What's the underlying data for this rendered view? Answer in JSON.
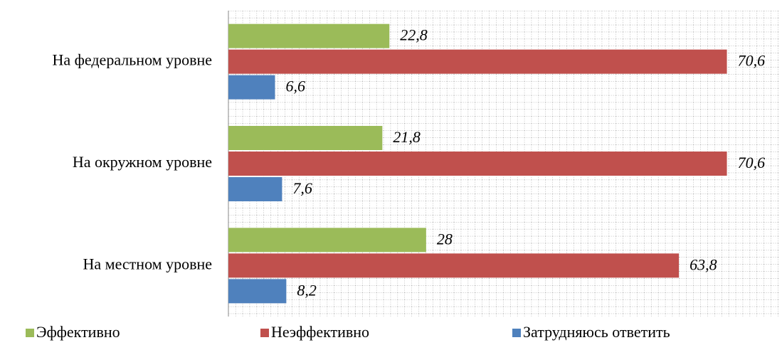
{
  "chart_data": {
    "type": "hbar",
    "categories": [
      "На федеральном уровне",
      "На окружном уровне",
      "На местном уровне"
    ],
    "series": [
      {
        "name": "Эффективно",
        "color": "#9bbb59",
        "values": [
          22.8,
          21.8,
          28
        ],
        "value_labels": [
          "22,8",
          "21,8",
          "28"
        ]
      },
      {
        "name": "Неэффективно",
        "color": "#c0504d",
        "values": [
          70.6,
          70.6,
          63.8
        ],
        "value_labels": [
          "70,6",
          "70,6",
          "63,8"
        ]
      },
      {
        "name": "Затрудняюсь ответить",
        "color": "#4f81bd",
        "values": [
          6.6,
          7.6,
          8.2
        ],
        "value_labels": [
          "6,6",
          "7,6",
          "8,2"
        ]
      }
    ],
    "xlim": [
      0,
      78
    ],
    "grid": true,
    "legend": "bottom"
  }
}
